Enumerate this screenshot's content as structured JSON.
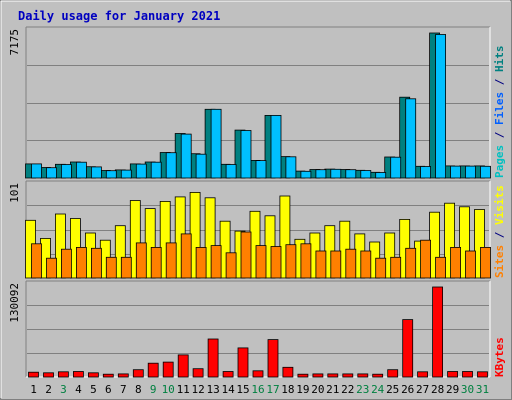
{
  "chart_data": {
    "type": "bar",
    "title": "Daily usage for January 2021",
    "days": [
      "1",
      "2",
      "3",
      "4",
      "5",
      "6",
      "7",
      "8",
      "9",
      "10",
      "11",
      "12",
      "13",
      "14",
      "15",
      "16",
      "17",
      "18",
      "19",
      "20",
      "21",
      "22",
      "23",
      "24",
      "25",
      "26",
      "27",
      "28",
      "29",
      "30",
      "31"
    ],
    "day_colors": [
      "#000000",
      "#000000",
      "#008040",
      "#000000",
      "#000000",
      "#000000",
      "#000000",
      "#000000",
      "#008040",
      "#008040",
      "#000000",
      "#000000",
      "#000000",
      "#000000",
      "#000000",
      "#008040",
      "#008040",
      "#000000",
      "#000000",
      "#000000",
      "#000000",
      "#000000",
      "#008040",
      "#008040",
      "#000000",
      "#000000",
      "#000000",
      "#000000",
      "#000000",
      "#008040",
      "#008040"
    ],
    "panels": [
      {
        "id": "hits",
        "ymax_label": "7175",
        "ymax": 7175,
        "side_labels": [
          {
            "text": "Pages",
            "color": "#00c0c0"
          },
          {
            "text": " / ",
            "color": "#000080"
          },
          {
            "text": "Files",
            "color": "#0060ff"
          },
          {
            "text": " / ",
            "color": "#000080"
          },
          {
            "text": "Hits",
            "color": "#008080"
          }
        ],
        "series": [
          {
            "name": "Hits",
            "color": "#008080",
            "values": [
              700,
              520,
              680,
              790,
              560,
              370,
              400,
              700,
              790,
              1260,
              2200,
              1200,
              3400,
              680,
              2370,
              870,
              3100,
              1060,
              340,
              420,
              440,
              420,
              380,
              280,
              1040,
              4000,
              580,
              7175,
              600,
              600,
              600
            ]
          },
          {
            "name": "Files",
            "color": "#00c0ff",
            "values": [
              700,
              510,
              670,
              780,
              550,
              360,
              390,
              690,
              780,
              1250,
              2170,
              1180,
              3400,
              670,
              2350,
              860,
              3100,
              1050,
              330,
              410,
              430,
              410,
              370,
              270,
              1030,
              3920,
              570,
              7100,
              590,
              590,
              580
            ]
          }
        ]
      },
      {
        "id": "visits",
        "ymax_label": "101",
        "ymax": 101,
        "side_labels": [
          {
            "text": "Sites",
            "color": "#ff8000"
          },
          {
            "text": " / ",
            "color": "#000080"
          },
          {
            "text": "Visits",
            "color": "#ffff00"
          }
        ],
        "series": [
          {
            "name": "Visits",
            "color": "#ffff00",
            "values": [
              64,
              44,
              71,
              66,
              50,
              42,
              58,
              86,
              77,
              85,
              90,
              95,
              89,
              63,
              52,
              74,
              69,
              91,
              43,
              50,
              58,
              63,
              49,
              40,
              50,
              65,
              41,
              73,
              83,
              79,
              76
            ]
          },
          {
            "name": "Sites",
            "color": "#ff8000",
            "values": [
              38,
              22,
              32,
              34,
              33,
              23,
              23,
              39,
              34,
              39,
              49,
              34,
              36,
              28,
              51,
              36,
              35,
              37,
              38,
              30,
              30,
              32,
              30,
              22,
              23,
              33,
              42,
              23,
              34,
              30,
              34
            ]
          }
        ]
      },
      {
        "id": "kbytes",
        "ymax_label": "130092",
        "ymax": 130092,
        "side_labels": [
          {
            "text": "KBytes",
            "color": "#ff0000"
          }
        ],
        "series": [
          {
            "name": "KBytes",
            "color": "#ff0000",
            "values": [
              7000,
              6000,
              7500,
              8000,
              6000,
              4000,
              4500,
              10500,
              20000,
              21500,
              32000,
              12000,
              55000,
              8000,
              42000,
              9000,
              54000,
              14000,
              4000,
              4500,
              4500,
              4500,
              4500,
              4000,
              10500,
              83000,
              7500,
              130092,
              8000,
              8000,
              7500
            ]
          }
        ]
      }
    ]
  }
}
